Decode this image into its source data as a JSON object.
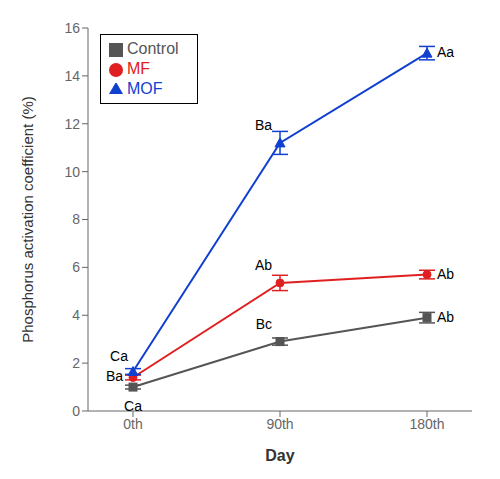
{
  "chart_data": {
    "type": "line",
    "categories": [
      "0th",
      "90th",
      "180th"
    ],
    "series": [
      {
        "name": "Control",
        "color": "#555555",
        "marker": "square",
        "values": [
          1.0,
          2.9,
          3.9
        ],
        "errors": [
          0.08,
          0.15,
          0.22
        ],
        "annotations": [
          "Ca",
          "Bc",
          "Ab"
        ]
      },
      {
        "name": "MF",
        "color": "#e02020",
        "marker": "circle",
        "values": [
          1.4,
          5.35,
          5.7
        ],
        "errors": [
          0.1,
          0.32,
          0.18
        ],
        "annotations": [
          "Ba",
          "Ab",
          "Ab"
        ]
      },
      {
        "name": "MOF",
        "color": "#1040d0",
        "marker": "triangle",
        "values": [
          1.65,
          11.2,
          14.95
        ],
        "errors": [
          0.12,
          0.48,
          0.28
        ],
        "annotations": [
          "Ca",
          "Ba",
          "Aa"
        ]
      }
    ],
    "xlabel": "Day",
    "ylabel": "Phosphorus activation coefficient (%)",
    "ylim": [
      0,
      16
    ],
    "yticks": [
      0,
      2,
      4,
      6,
      8,
      10,
      12,
      14,
      16
    ],
    "legend": "upper left",
    "grid": false
  }
}
